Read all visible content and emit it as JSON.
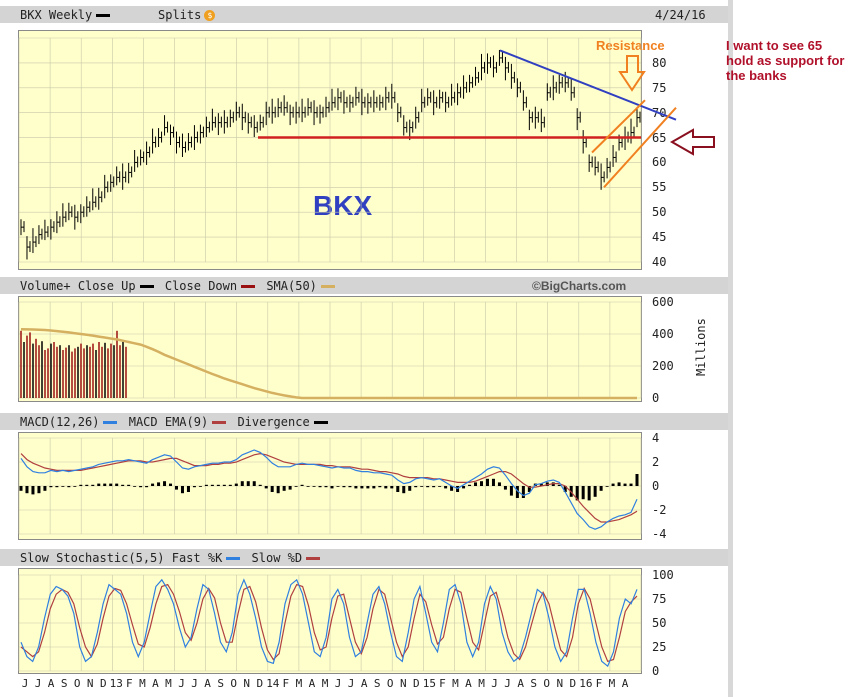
{
  "header": {
    "title": "BKX Weekly",
    "splits": "Splits",
    "date": "4/24/16",
    "splits_icon": "dollar-icon"
  },
  "annotations": {
    "symbol": "BKX",
    "resistance": "Resistance",
    "side_note": "I want to see 65 hold  as support for the banks",
    "attribution": "©BigCharts.com"
  },
  "colors": {
    "price_bg": "#ffffcc",
    "support": "#d02020",
    "trend": "#3040c0",
    "channel": "#f08020",
    "arrow": "#8a1020",
    "close_up": "#000000",
    "close_down": "#9a1010",
    "sma": "#d4b060",
    "macd": "#3080e0",
    "ema": "#b04040"
  },
  "panels": {
    "volume": {
      "title": "Volume+",
      "close_up": "Close Up",
      "close_down": "Close Down",
      "sma": "SMA(50)",
      "unit": "Millions"
    },
    "macd": {
      "title": "MACD(12,26)",
      "ema": "MACD EMA(9)",
      "divergence": "Divergence"
    },
    "stoch": {
      "title": "Slow Stochastic(5,5)",
      "fast": "Fast %K",
      "slow": "Slow %D"
    }
  },
  "chart_data": [
    {
      "type": "line",
      "name": "price",
      "ylim": [
        40,
        85
      ],
      "yticks": [
        "40",
        "45",
        "50",
        "55",
        "60",
        "65",
        "70",
        "75",
        "80"
      ],
      "support_level": 65,
      "x": [
        0,
        6,
        12,
        18,
        24,
        30,
        36,
        42,
        48,
        54,
        60,
        66,
        72,
        78,
        84,
        90,
        96,
        102,
        108,
        114,
        120,
        126,
        132,
        138,
        144,
        150,
        156,
        162,
        168,
        174,
        180,
        186,
        192,
        198,
        204,
        210,
        216,
        222,
        228,
        234,
        240,
        246,
        252,
        258,
        264,
        270,
        276,
        282,
        288,
        294,
        300,
        306,
        312,
        318,
        324,
        330,
        336,
        342,
        348,
        354,
        360,
        366,
        372,
        378,
        384,
        390,
        396,
        402,
        408,
        414,
        420,
        426,
        432,
        438,
        444,
        450,
        456,
        462,
        468,
        474,
        480,
        486,
        492,
        498,
        504,
        510,
        516,
        522,
        528,
        534,
        540,
        546,
        552,
        558,
        564,
        570,
        576,
        582,
        588,
        594,
        600,
        606,
        612,
        618
      ],
      "values": [
        47,
        43,
        44,
        45.5,
        46,
        47,
        48,
        49,
        50,
        49,
        50,
        51,
        52,
        53,
        55,
        56,
        57,
        57,
        58,
        60,
        61,
        62,
        64,
        65,
        67,
        66,
        64,
        63,
        64,
        65,
        66,
        67,
        68,
        68,
        68,
        69,
        70,
        69,
        68,
        67,
        68,
        70,
        70,
        71,
        71,
        70,
        70,
        70,
        71,
        70,
        70,
        71,
        72,
        73,
        72,
        72,
        73,
        72,
        72,
        72,
        72,
        73,
        73,
        70,
        67,
        67,
        69,
        72,
        73,
        72,
        73,
        72,
        73,
        74,
        75,
        76,
        77,
        79,
        80,
        79,
        81,
        79,
        77,
        75,
        72,
        69,
        69,
        68,
        74,
        75,
        76,
        76,
        74,
        69,
        64,
        60,
        59,
        57,
        59,
        61,
        64,
        65,
        66,
        69
      ]
    },
    {
      "type": "bar",
      "name": "volume",
      "ylim": [
        0,
        600
      ],
      "yticks": [
        "0",
        "200",
        "400",
        "600"
      ],
      "values": [
        420,
        350,
        390,
        410,
        340,
        370,
        330,
        355,
        300,
        310,
        340,
        350,
        320,
        330,
        300,
        315,
        330,
        290,
        310,
        320,
        340,
        310,
        330,
        320,
        340,
        300,
        350,
        320,
        345,
        310,
        340,
        330,
        420,
        330,
        350,
        320
      ],
      "sma": [
        430,
        429,
        428,
        427,
        425,
        422,
        418,
        414,
        410,
        405,
        400,
        395,
        390,
        384,
        378,
        372,
        366,
        358,
        350,
        342,
        334,
        320,
        305,
        288,
        270,
        255,
        240,
        225,
        210,
        195,
        180,
        165,
        150,
        136,
        122,
        110,
        98,
        86,
        74,
        62,
        52,
        42,
        32,
        24,
        16,
        10,
        4,
        0,
        0,
        0,
        0,
        0,
        0,
        0,
        0,
        0,
        0,
        0,
        0,
        0,
        0,
        0,
        0,
        0,
        0,
        0,
        0,
        0,
        0,
        0,
        0,
        0,
        0,
        0,
        0,
        0,
        0,
        0,
        0,
        0,
        0,
        0,
        0,
        0,
        0,
        0,
        0,
        0,
        0,
        0,
        0,
        0,
        0,
        0,
        0,
        0,
        0,
        0,
        0,
        0,
        0,
        0,
        0,
        0
      ]
    },
    {
      "type": "line",
      "name": "macd",
      "ylim": [
        -4,
        4
      ],
      "yticks": [
        "-4",
        "-2",
        "0",
        "2",
        "4"
      ],
      "macd": [
        2.3,
        1.6,
        1.2,
        1.1,
        1.1,
        1.3,
        1.2,
        1.3,
        1.2,
        1.3,
        1.4,
        1.5,
        1.6,
        1.8,
        1.9,
        2.0,
        2.1,
        2.1,
        2.2,
        2.1,
        2.0,
        1.9,
        2.2,
        2.4,
        2.6,
        2.5,
        2.0,
        1.5,
        1.4,
        1.6,
        1.7,
        1.8,
        1.9,
        1.9,
        2.0,
        2.0,
        2.2,
        2.6,
        2.8,
        3.0,
        2.8,
        2.4,
        1.9,
        1.6,
        1.6,
        1.6,
        1.8,
        1.9,
        1.8,
        1.8,
        1.7,
        1.6,
        1.5,
        1.6,
        1.5,
        1.5,
        1.3,
        1.2,
        1.2,
        1.1,
        1.1,
        1.0,
        0.9,
        0.5,
        0.2,
        0.3,
        0.6,
        0.7,
        0.6,
        0.5,
        0.6,
        0.3,
        0.0,
        -0.2,
        0.1,
        0.4,
        0.7,
        1.0,
        1.4,
        1.6,
        1.5,
        0.9,
        0.2,
        -0.4,
        -0.8,
        -0.6,
        0.1,
        0.2,
        0.4,
        0.5,
        0.3,
        -0.5,
        -1.4,
        -2.3,
        -2.8,
        -3.4,
        -3.6,
        -3.4,
        -3.0,
        -2.7,
        -2.5,
        -2.4,
        -2.2,
        -1.1
      ],
      "ema": [
        2.7,
        2.2,
        1.9,
        1.7,
        1.5,
        1.4,
        1.3,
        1.3,
        1.3,
        1.3,
        1.3,
        1.4,
        1.5,
        1.6,
        1.7,
        1.8,
        1.9,
        2.0,
        2.1,
        2.1,
        2.1,
        2.0,
        2.0,
        2.1,
        2.2,
        2.3,
        2.3,
        2.1,
        1.9,
        1.7,
        1.7,
        1.7,
        1.8,
        1.8,
        1.9,
        1.9,
        2.0,
        2.2,
        2.4,
        2.6,
        2.7,
        2.6,
        2.4,
        2.2,
        2.0,
        1.9,
        1.8,
        1.8,
        1.8,
        1.8,
        1.8,
        1.7,
        1.7,
        1.6,
        1.6,
        1.6,
        1.5,
        1.4,
        1.4,
        1.3,
        1.2,
        1.2,
        1.1,
        1.0,
        0.8,
        0.7,
        0.7,
        0.7,
        0.7,
        0.6,
        0.6,
        0.5,
        0.4,
        0.3,
        0.3,
        0.3,
        0.4,
        0.6,
        0.8,
        1.0,
        1.2,
        1.2,
        1.0,
        0.6,
        0.2,
        -0.1,
        -0.1,
        0.0,
        0.1,
        0.2,
        0.2,
        0.0,
        -0.5,
        -1.1,
        -1.7,
        -2.2,
        -2.7,
        -3.0,
        -3.0,
        -2.9,
        -2.8,
        -2.6,
        -2.4,
        -2.1
      ]
    },
    {
      "type": "line",
      "name": "stochastic",
      "ylim": [
        0,
        100
      ],
      "yticks": [
        "0",
        "25",
        "50",
        "75",
        "100"
      ],
      "fast": [
        30,
        15,
        10,
        25,
        55,
        80,
        88,
        85,
        78,
        60,
        25,
        10,
        15,
        40,
        70,
        90,
        85,
        80,
        60,
        30,
        15,
        30,
        60,
        88,
        95,
        85,
        70,
        45,
        25,
        35,
        65,
        90,
        85,
        60,
        30,
        20,
        40,
        80,
        95,
        80,
        55,
        25,
        10,
        8,
        30,
        70,
        90,
        95,
        80,
        50,
        20,
        15,
        35,
        75,
        85,
        70,
        35,
        15,
        20,
        50,
        80,
        88,
        70,
        40,
        15,
        10,
        40,
        75,
        88,
        60,
        30,
        20,
        50,
        85,
        90,
        70,
        30,
        15,
        30,
        70,
        88,
        75,
        40,
        20,
        10,
        15,
        35,
        60,
        85,
        80,
        55,
        25,
        10,
        20,
        55,
        85,
        85,
        60,
        30,
        10,
        5,
        20,
        55,
        75,
        70,
        85
      ],
      "slow": [
        25,
        20,
        15,
        20,
        40,
        65,
        80,
        85,
        82,
        70,
        45,
        25,
        15,
        28,
        55,
        78,
        86,
        84,
        70,
        48,
        28,
        25,
        45,
        70,
        88,
        90,
        80,
        62,
        40,
        32,
        50,
        75,
        86,
        76,
        50,
        30,
        30,
        60,
        85,
        88,
        72,
        45,
        22,
        12,
        18,
        50,
        78,
        90,
        88,
        68,
        40,
        22,
        25,
        55,
        78,
        80,
        55,
        30,
        18,
        35,
        65,
        85,
        80,
        55,
        30,
        15,
        25,
        55,
        80,
        72,
        48,
        28,
        35,
        65,
        85,
        82,
        55,
        30,
        22,
        50,
        78,
        82,
        60,
        35,
        18,
        12,
        25,
        48,
        70,
        82,
        70,
        45,
        22,
        15,
        35,
        70,
        86,
        75,
        50,
        25,
        10,
        12,
        35,
        62,
        72,
        78
      ]
    }
  ],
  "x_axis": {
    "labels": [
      "J",
      "J",
      "A",
      "S",
      "O",
      "N",
      "D",
      "13",
      "F",
      "M",
      "A",
      "M",
      "J",
      "J",
      "A",
      "S",
      "O",
      "N",
      "D",
      "14",
      "F",
      "M",
      "A",
      "M",
      "J",
      "J",
      "A",
      "S",
      "O",
      "N",
      "D",
      "15",
      "F",
      "M",
      "A",
      "M",
      "J",
      "J",
      "A",
      "S",
      "O",
      "N",
      "D",
      "16",
      "F",
      "M",
      "A"
    ]
  }
}
